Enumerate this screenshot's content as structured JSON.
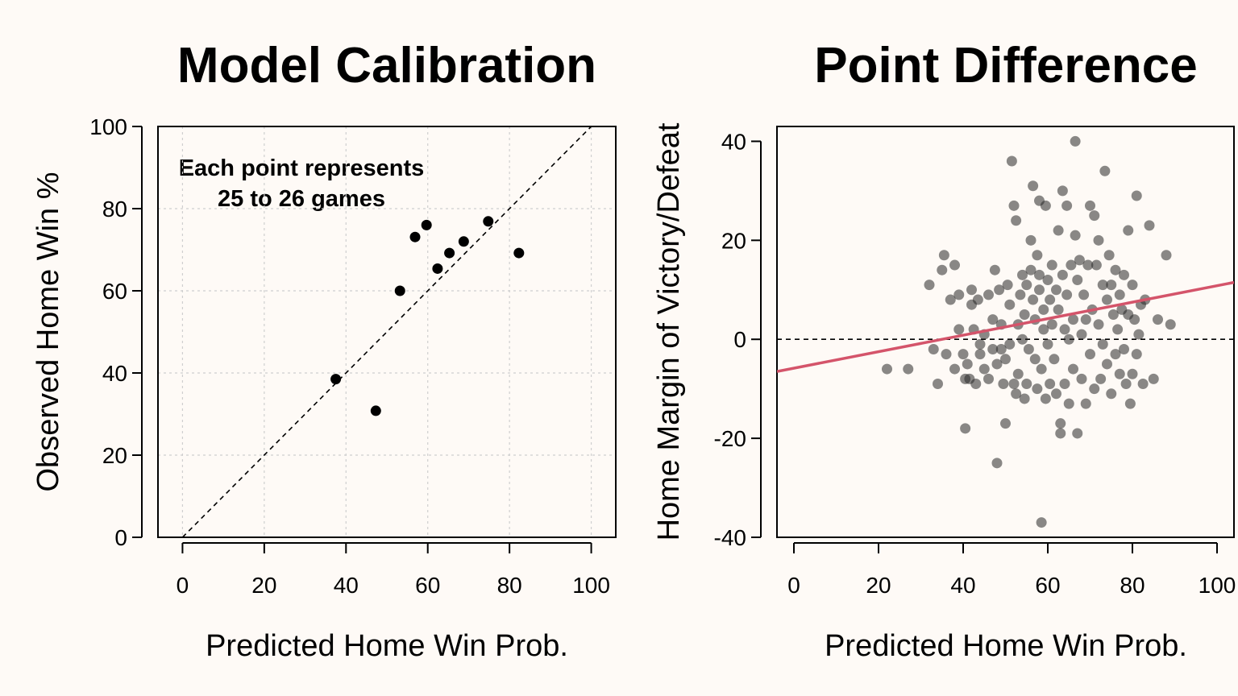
{
  "chart_data": [
    {
      "type": "scatter",
      "title": "Model Calibration",
      "xlabel": "Predicted Home Win Prob.",
      "ylabel": "Observed Home Win %",
      "xlim": [
        -6,
        106
      ],
      "ylim": [
        0,
        100
      ],
      "xticks": [
        "0",
        "20",
        "40",
        "60",
        "80",
        "100"
      ],
      "yticks": [
        "0",
        "20",
        "40",
        "60",
        "80",
        "100"
      ],
      "grid": true,
      "reference_line": "y = x (dashed)",
      "annotation": [
        "Each point represents",
        "25 to 26 games"
      ],
      "points": [
        {
          "x": 37.5,
          "y": 38.5
        },
        {
          "x": 47.3,
          "y": 30.8
        },
        {
          "x": 53.2,
          "y": 60.0
        },
        {
          "x": 56.9,
          "y": 73.1
        },
        {
          "x": 59.7,
          "y": 76.0
        },
        {
          "x": 62.4,
          "y": 65.4
        },
        {
          "x": 65.3,
          "y": 69.2
        },
        {
          "x": 68.8,
          "y": 72.0
        },
        {
          "x": 74.8,
          "y": 76.9
        },
        {
          "x": 82.3,
          "y": 69.2
        }
      ]
    },
    {
      "type": "scatter",
      "title": "Point Difference",
      "xlabel": "Predicted Home Win Prob.",
      "ylabel": "Home Margin of Victory/Defeat",
      "xlim": [
        -4,
        104
      ],
      "ylim": [
        -40,
        43
      ],
      "xticks": [
        "0",
        "20",
        "40",
        "60",
        "80",
        "100"
      ],
      "yticks": [
        "-40",
        "-20",
        "0",
        "20",
        "40"
      ],
      "grid": false,
      "reference_line": "y = 0 (dashed)",
      "trend_line": {
        "color": "#d4546a",
        "x": [
          -4,
          104
        ],
        "y": [
          -6.5,
          11.5
        ]
      },
      "points": [
        {
          "x": 22,
          "y": -6
        },
        {
          "x": 27,
          "y": -6
        },
        {
          "x": 32,
          "y": 11
        },
        {
          "x": 33,
          "y": -2
        },
        {
          "x": 34,
          "y": -9
        },
        {
          "x": 35,
          "y": 14
        },
        {
          "x": 35.5,
          "y": 17
        },
        {
          "x": 36,
          "y": -3
        },
        {
          "x": 37,
          "y": 8
        },
        {
          "x": 38,
          "y": 15
        },
        {
          "x": 38,
          "y": -6
        },
        {
          "x": 39,
          "y": 2
        },
        {
          "x": 39,
          "y": 9
        },
        {
          "x": 40,
          "y": -3
        },
        {
          "x": 40.5,
          "y": -8
        },
        {
          "x": 40.5,
          "y": -18
        },
        {
          "x": 41,
          "y": -5
        },
        {
          "x": 41.5,
          "y": -8
        },
        {
          "x": 42,
          "y": 7
        },
        {
          "x": 42,
          "y": 10
        },
        {
          "x": 42.5,
          "y": 2
        },
        {
          "x": 43,
          "y": -9
        },
        {
          "x": 43.5,
          "y": 8
        },
        {
          "x": 44,
          "y": -3
        },
        {
          "x": 44,
          "y": -1
        },
        {
          "x": 45,
          "y": 1
        },
        {
          "x": 45,
          "y": -6
        },
        {
          "x": 46,
          "y": -8
        },
        {
          "x": 46,
          "y": 9
        },
        {
          "x": 47,
          "y": 4
        },
        {
          "x": 47,
          "y": -2
        },
        {
          "x": 47.5,
          "y": 14
        },
        {
          "x": 48,
          "y": -5
        },
        {
          "x": 48,
          "y": -25
        },
        {
          "x": 48.5,
          "y": 10
        },
        {
          "x": 49,
          "y": -2
        },
        {
          "x": 49,
          "y": 3
        },
        {
          "x": 49.5,
          "y": -9
        },
        {
          "x": 50,
          "y": -4
        },
        {
          "x": 50,
          "y": -17
        },
        {
          "x": 50.5,
          "y": 11
        },
        {
          "x": 51,
          "y": 7
        },
        {
          "x": 51,
          "y": -1
        },
        {
          "x": 51.5,
          "y": 36
        },
        {
          "x": 52,
          "y": 27
        },
        {
          "x": 52,
          "y": -9
        },
        {
          "x": 52.5,
          "y": -11
        },
        {
          "x": 52.5,
          "y": 24
        },
        {
          "x": 53,
          "y": 3
        },
        {
          "x": 53,
          "y": -7
        },
        {
          "x": 53.5,
          "y": 9
        },
        {
          "x": 54,
          "y": 13
        },
        {
          "x": 54,
          "y": 0
        },
        {
          "x": 54.5,
          "y": -12
        },
        {
          "x": 54.5,
          "y": 5
        },
        {
          "x": 55,
          "y": -9
        },
        {
          "x": 55,
          "y": 11
        },
        {
          "x": 55.5,
          "y": -2
        },
        {
          "x": 56,
          "y": 14
        },
        {
          "x": 56,
          "y": 20
        },
        {
          "x": 56.5,
          "y": 31
        },
        {
          "x": 56.5,
          "y": 8
        },
        {
          "x": 57,
          "y": -4
        },
        {
          "x": 57,
          "y": 4
        },
        {
          "x": 57.5,
          "y": 17
        },
        {
          "x": 57.5,
          "y": -10
        },
        {
          "x": 58,
          "y": 28
        },
        {
          "x": 58,
          "y": 10
        },
        {
          "x": 58,
          "y": 13
        },
        {
          "x": 58.5,
          "y": -6
        },
        {
          "x": 58.5,
          "y": -37
        },
        {
          "x": 59,
          "y": 6
        },
        {
          "x": 59,
          "y": 2
        },
        {
          "x": 59.5,
          "y": 27
        },
        {
          "x": 59.5,
          "y": -12
        },
        {
          "x": 60,
          "y": 12
        },
        {
          "x": 60,
          "y": -1
        },
        {
          "x": 60.5,
          "y": 8
        },
        {
          "x": 60.5,
          "y": -9
        },
        {
          "x": 61,
          "y": 15
        },
        {
          "x": 61,
          "y": 3
        },
        {
          "x": 61.5,
          "y": -4
        },
        {
          "x": 62,
          "y": 10
        },
        {
          "x": 62,
          "y": -11
        },
        {
          "x": 62.5,
          "y": 22
        },
        {
          "x": 62.5,
          "y": 6
        },
        {
          "x": 63,
          "y": -19
        },
        {
          "x": 63,
          "y": -17
        },
        {
          "x": 63.5,
          "y": 30
        },
        {
          "x": 63.5,
          "y": 13
        },
        {
          "x": 64,
          "y": 2
        },
        {
          "x": 64,
          "y": -9
        },
        {
          "x": 64.5,
          "y": 27
        },
        {
          "x": 64.5,
          "y": 9
        },
        {
          "x": 65,
          "y": -13
        },
        {
          "x": 65,
          "y": 0
        },
        {
          "x": 65.5,
          "y": 15
        },
        {
          "x": 66,
          "y": 4
        },
        {
          "x": 66,
          "y": -6
        },
        {
          "x": 66.5,
          "y": 40
        },
        {
          "x": 66.5,
          "y": 21
        },
        {
          "x": 67,
          "y": 12
        },
        {
          "x": 67,
          "y": -19
        },
        {
          "x": 67.5,
          "y": 16
        },
        {
          "x": 68,
          "y": 1
        },
        {
          "x": 68,
          "y": -8
        },
        {
          "x": 68.5,
          "y": 9
        },
        {
          "x": 69,
          "y": -13
        },
        {
          "x": 69,
          "y": 4
        },
        {
          "x": 69.5,
          "y": 15
        },
        {
          "x": 70,
          "y": 27
        },
        {
          "x": 70,
          "y": -3
        },
        {
          "x": 70.5,
          "y": 6
        },
        {
          "x": 71,
          "y": 25
        },
        {
          "x": 71,
          "y": -10
        },
        {
          "x": 71.5,
          "y": 15
        },
        {
          "x": 72,
          "y": 20
        },
        {
          "x": 72,
          "y": 3
        },
        {
          "x": 72.5,
          "y": -8
        },
        {
          "x": 73,
          "y": 11
        },
        {
          "x": 73,
          "y": -1
        },
        {
          "x": 73.5,
          "y": 34
        },
        {
          "x": 74,
          "y": 8
        },
        {
          "x": 74,
          "y": -5
        },
        {
          "x": 74.5,
          "y": 17
        },
        {
          "x": 75,
          "y": 11
        },
        {
          "x": 75,
          "y": -11
        },
        {
          "x": 75.5,
          "y": 5
        },
        {
          "x": 76,
          "y": -3
        },
        {
          "x": 76,
          "y": 14
        },
        {
          "x": 76.5,
          "y": 2
        },
        {
          "x": 77,
          "y": -7
        },
        {
          "x": 77,
          "y": 9
        },
        {
          "x": 77.5,
          "y": 6
        },
        {
          "x": 78,
          "y": -2
        },
        {
          "x": 78,
          "y": 13
        },
        {
          "x": 78.5,
          "y": -9
        },
        {
          "x": 79,
          "y": 22
        },
        {
          "x": 79,
          "y": 5
        },
        {
          "x": 79.5,
          "y": -13
        },
        {
          "x": 80,
          "y": 11
        },
        {
          "x": 80,
          "y": -7
        },
        {
          "x": 80.5,
          "y": 4
        },
        {
          "x": 81,
          "y": 29
        },
        {
          "x": 81,
          "y": -3
        },
        {
          "x": 81.5,
          "y": 1
        },
        {
          "x": 82,
          "y": 7
        },
        {
          "x": 82.5,
          "y": -9
        },
        {
          "x": 83,
          "y": 8
        },
        {
          "x": 84,
          "y": 23
        },
        {
          "x": 85,
          "y": -8
        },
        {
          "x": 86,
          "y": 4
        },
        {
          "x": 88,
          "y": 17
        },
        {
          "x": 89,
          "y": 3
        }
      ]
    }
  ]
}
